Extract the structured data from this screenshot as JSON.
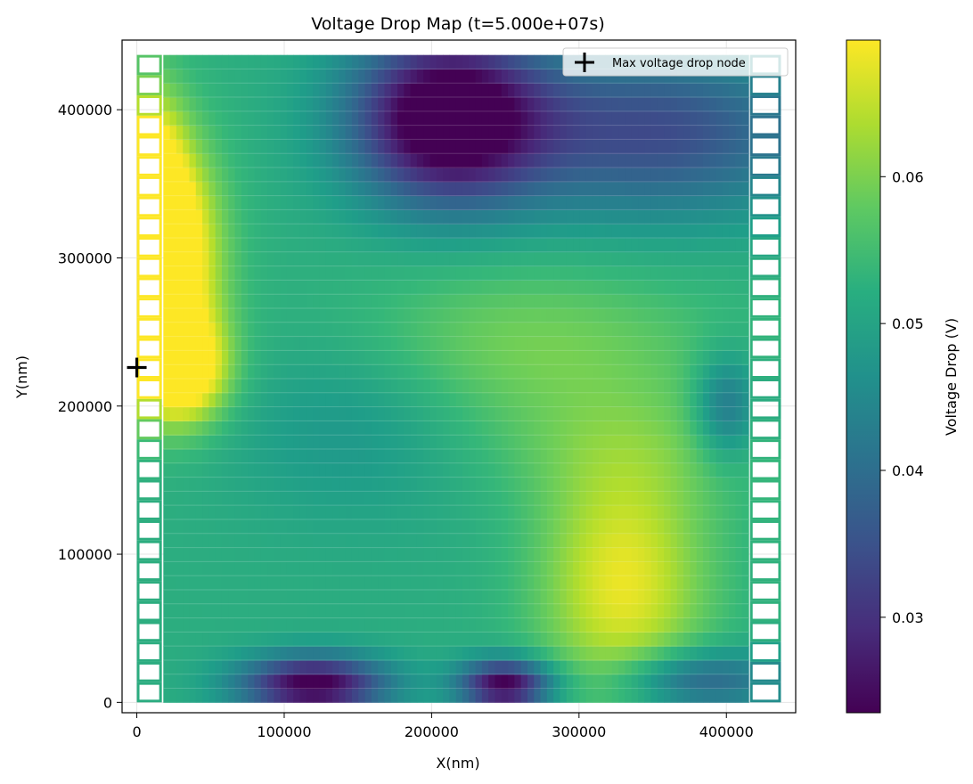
{
  "chart_data": {
    "type": "heatmap",
    "title": "Voltage Drop Map (t=5.000e+07s)",
    "xlabel": "X(nm)",
    "ylabel": "Y(nm)",
    "xlim": [
      -10000,
      447000
    ],
    "ylim": [
      -7000,
      447000
    ],
    "x_ticks": [
      0,
      100000,
      200000,
      300000,
      400000
    ],
    "y_ticks": [
      0,
      100000,
      200000,
      300000,
      400000
    ],
    "grid": true,
    "colormap": "viridis",
    "colorbar": {
      "label": "Voltage Drop (V)",
      "range": [
        0.0235,
        0.0693
      ],
      "ticks": [
        0.03,
        0.04,
        0.05,
        0.06
      ],
      "tick_labels": [
        "0.03",
        "0.04",
        "0.05",
        "0.06"
      ]
    },
    "legend": {
      "placement": "top-right",
      "entries": [
        {
          "label": "Max voltage drop node",
          "marker": "plus",
          "color": "#000000"
        }
      ]
    },
    "max_node": {
      "x": 0,
      "y": 226000
    },
    "grid_area": {
      "x_range": [
        0,
        437000
      ],
      "y_range": [
        0,
        437000
      ]
    },
    "hotspots": [
      {
        "x": 20000,
        "y": 300000,
        "sx": 25000,
        "sy": 55000,
        "v": 0.026
      },
      {
        "x": 30000,
        "y": 225000,
        "sx": 22000,
        "sy": 25000,
        "v": 0.022
      },
      {
        "x": 10000,
        "y": 340000,
        "sx": 15000,
        "sy": 50000,
        "v": 0.018
      },
      {
        "x": 330000,
        "y": 80000,
        "sx": 40000,
        "sy": 60000,
        "v": 0.016
      },
      {
        "x": 250000,
        "y": 240000,
        "sx": 100000,
        "sy": 40000,
        "v": 0.008
      },
      {
        "x": 330000,
        "y": 170000,
        "sx": 80000,
        "sy": 30000,
        "v": 0.004
      },
      {
        "x": 210000,
        "y": 395000,
        "sx": 45000,
        "sy": 40000,
        "v": -0.034
      },
      {
        "x": 350000,
        "y": 385000,
        "sx": 80000,
        "sy": 40000,
        "v": -0.018
      },
      {
        "x": 120000,
        "y": 12000,
        "sx": 35000,
        "sy": 14000,
        "v": -0.03
      },
      {
        "x": 250000,
        "y": 12000,
        "sx": 22000,
        "sy": 12000,
        "v": -0.03
      },
      {
        "x": 400000,
        "y": 200000,
        "sx": 15000,
        "sy": 25000,
        "v": -0.012
      },
      {
        "x": 380000,
        "y": 15000,
        "sx": 40000,
        "sy": 15000,
        "v": -0.015
      },
      {
        "x": 150000,
        "y": 200000,
        "sx": 60000,
        "sy": 50000,
        "v": -0.006
      }
    ],
    "base_value": 0.052
  }
}
